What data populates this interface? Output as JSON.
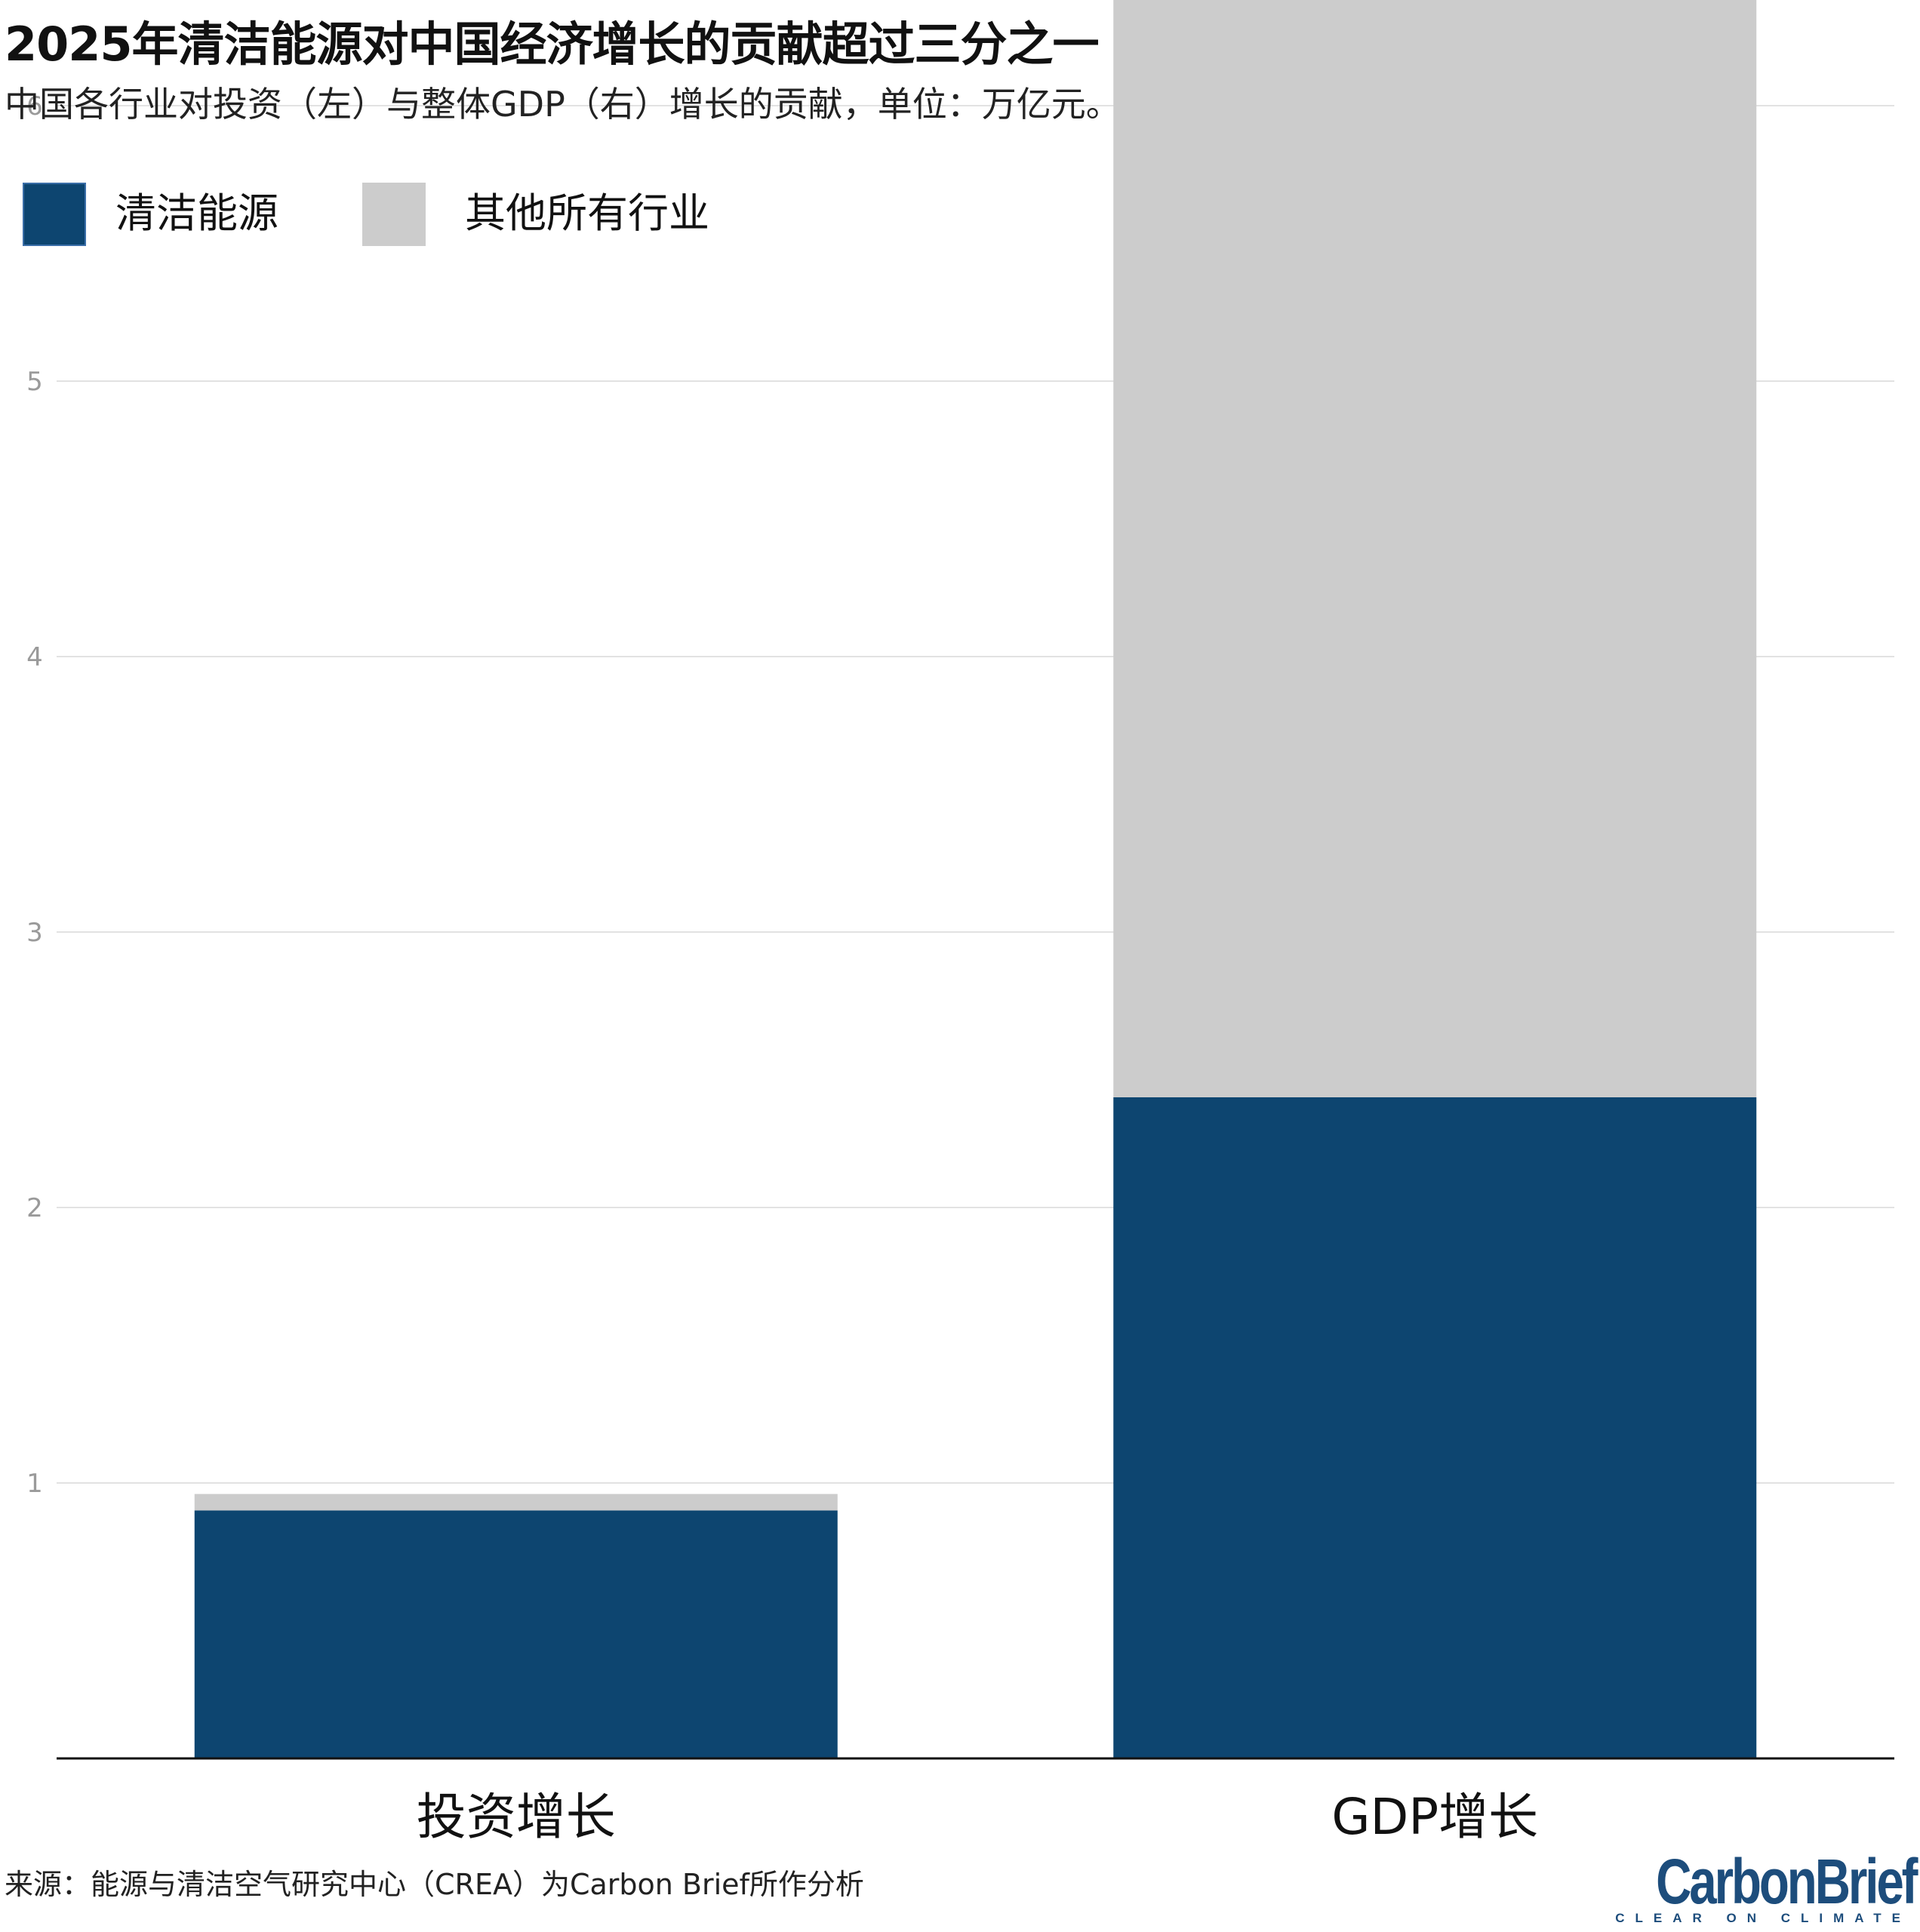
{
  "title": "2025年清洁能源对中国经济增长的贡献超过三分之一",
  "subtitle": "中国各行业对投资（左）与整体GDP（右）增长的贡献，单位：万亿元。",
  "legend": [
    {
      "label": "清洁能源",
      "color": "#0d4570"
    },
    {
      "label": "其他所有行业",
      "color": "#cccccc"
    }
  ],
  "source": "来源：能源与清洁空气研究中心（CREA）为Carbon Brief所作分析",
  "logo": {
    "word": "CarbonBrief",
    "tagline": "CLEAR ON CLIMATE"
  },
  "chart_data": {
    "type": "bar",
    "stacked": true,
    "categories": [
      "投资增长",
      "GDP增长"
    ],
    "series": [
      {
        "name": "清洁能源",
        "color": "#0d4570",
        "values": [
          0.9,
          2.4
        ]
      },
      {
        "name": "其他所有行业",
        "color": "#cccccc",
        "values": [
          0.06,
          4.0
        ]
      }
    ],
    "ylim": [
      0,
      6.4
    ],
    "yticks": [
      1,
      2,
      3,
      4,
      5,
      6
    ],
    "grid": true,
    "legend_position": "top-left",
    "xlabel": "",
    "ylabel": ""
  }
}
